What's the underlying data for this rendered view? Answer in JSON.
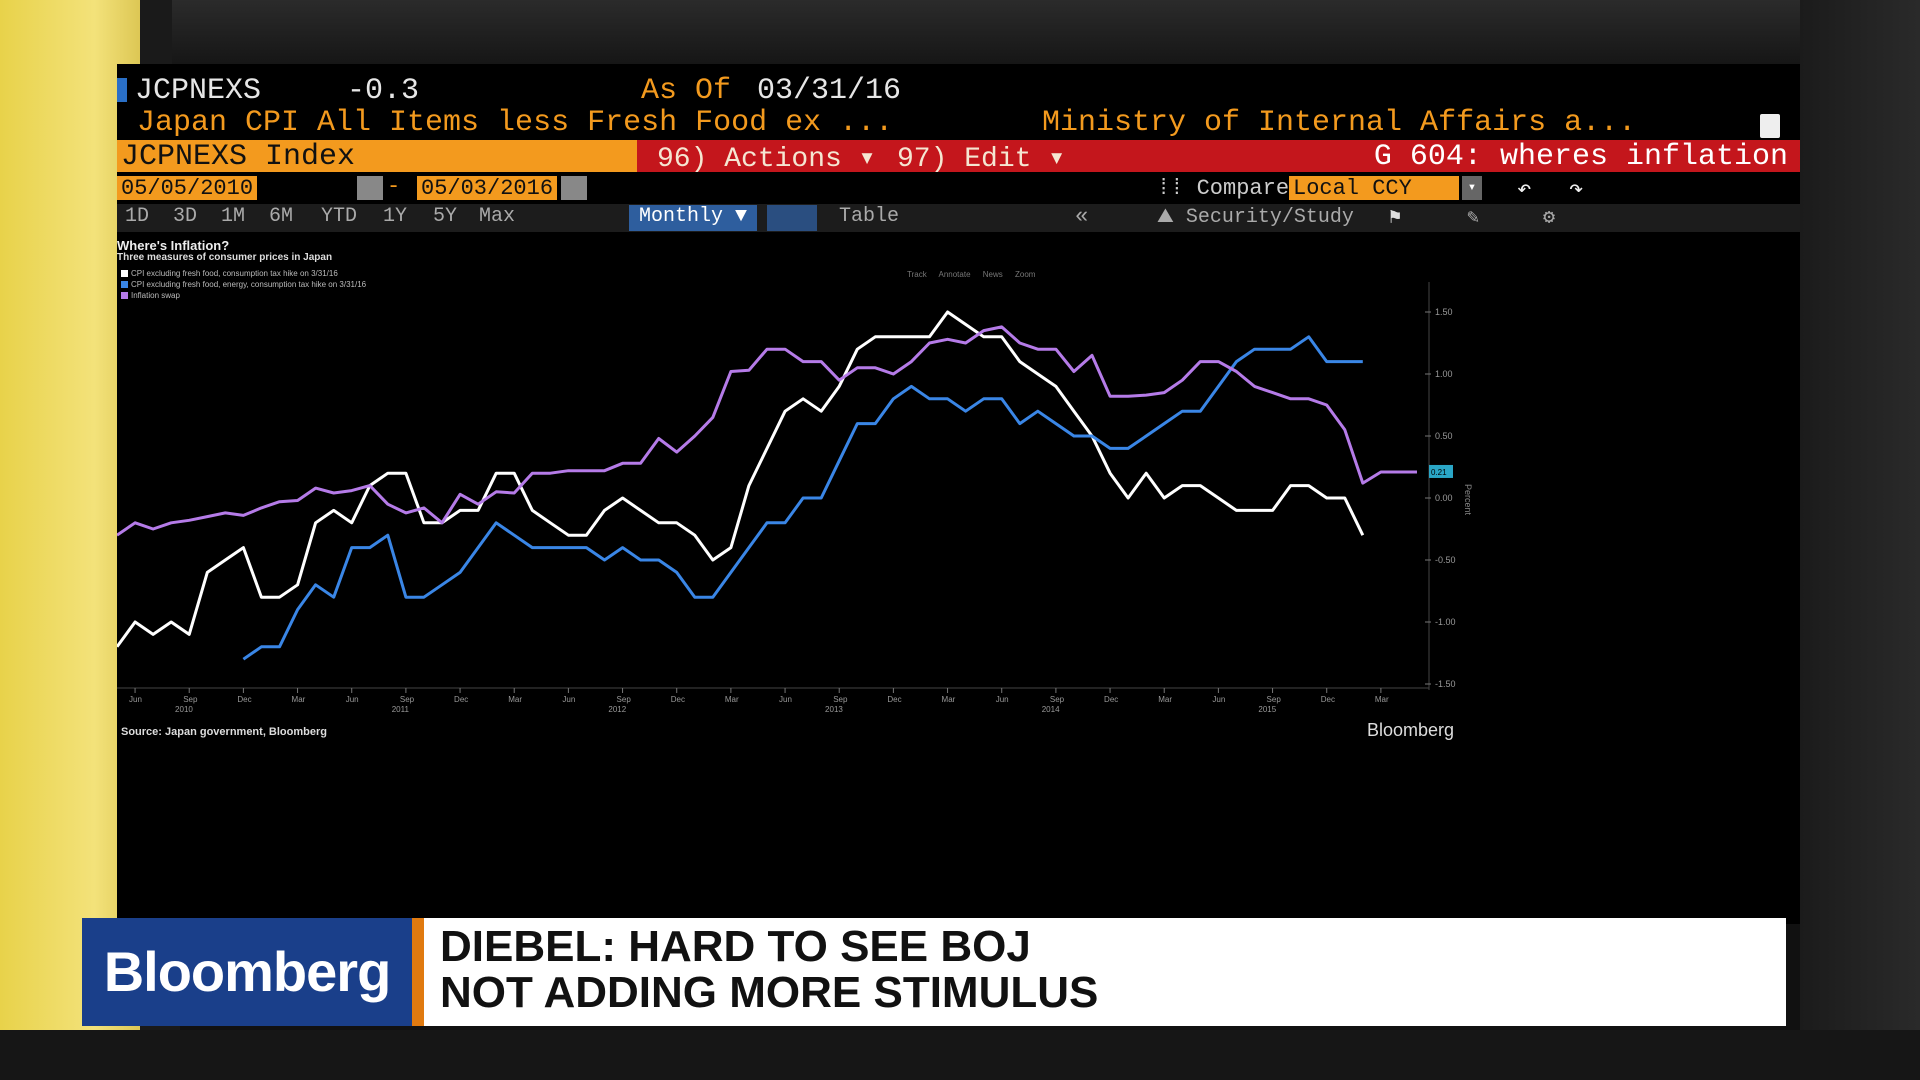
{
  "header": {
    "ticker": "JCPNEXS",
    "change": "-0.3",
    "as_of_label": "As Of",
    "as_of_date": "03/31/16",
    "description": "Japan CPI All Items less Fresh Food ex ...",
    "source": "Ministry of Internal Affairs a...",
    "index_label": "JCPNEXS Index",
    "actions_label": "96) Actions ▾",
    "edit_label": "97) Edit ▾",
    "graph_label": "G 604: wheres inflation"
  },
  "date_range": {
    "start": "05/05/2010",
    "separator": "-",
    "end": "05/03/2016",
    "compare_label": "Compare",
    "currency": "Local CCY"
  },
  "periods": [
    "1D",
    "3D",
    "1M",
    "6M",
    "YTD",
    "1Y",
    "5Y",
    "Max"
  ],
  "toolbar": {
    "frequency": "Monthly ▼",
    "table_label": "Table",
    "security_study_label": "Security/Study"
  },
  "chart_tools": [
    "Track",
    "Annotate",
    "News",
    "Zoom"
  ],
  "chart_data": {
    "type": "line",
    "title": "Where's Inflation?",
    "subtitle": "Three measures of consumer prices in Japan",
    "ylabel": "Percent",
    "ylim": [
      -1.5,
      1.5
    ],
    "y_ticks": [
      "1.50",
      "1.00",
      "0.50",
      "0.00",
      "-0.50",
      "-1.00",
      "-1.50"
    ],
    "x_ticks": [
      "Jun",
      "Sep",
      "Dec",
      "Mar",
      "Jun",
      "Sep",
      "Dec",
      "Mar",
      "Jun",
      "Sep",
      "Dec",
      "Mar",
      "Jun",
      "Sep",
      "Dec",
      "Mar",
      "Jun",
      "Sep",
      "Dec",
      "Mar",
      "Jun",
      "Sep",
      "Dec",
      "Mar"
    ],
    "x_years": [
      "2010",
      "2011",
      "2012",
      "2013",
      "2014",
      "2015"
    ],
    "x_start": "2010-05",
    "last_value_tag": "0.21",
    "series": [
      {
        "name": "CPI excluding fresh food, consumption tax hike on 3/31/16",
        "color": "#ffffff",
        "start": "2010-05",
        "values": [
          -1.2,
          -1.0,
          -1.1,
          -1.0,
          -1.1,
          -0.6,
          -0.5,
          -0.4,
          -0.8,
          -0.8,
          -0.7,
          -0.2,
          -0.1,
          -0.2,
          0.1,
          0.2,
          0.2,
          -0.2,
          -0.2,
          -0.1,
          -0.1,
          0.2,
          0.2,
          -0.1,
          -0.2,
          -0.3,
          -0.3,
          -0.1,
          0.0,
          -0.1,
          -0.2,
          -0.2,
          -0.3,
          -0.5,
          -0.4,
          0.1,
          0.4,
          0.7,
          0.8,
          0.7,
          0.9,
          1.2,
          1.3,
          1.3,
          1.3,
          1.3,
          1.5,
          1.4,
          1.3,
          1.3,
          1.1,
          1.0,
          0.9,
          0.7,
          0.5,
          0.2,
          0.0,
          0.2,
          0.0,
          0.1,
          0.1,
          0.0,
          -0.1,
          -0.1,
          -0.1,
          0.1,
          0.1,
          0.0,
          0.0,
          -0.3
        ]
      },
      {
        "name": "CPI excluding fresh food, energy, consumption tax hike on 3/31/16",
        "color": "#3a86e6",
        "start": "2010-12",
        "values": [
          -1.3,
          -1.2,
          -1.2,
          -0.9,
          -0.7,
          -0.8,
          -0.4,
          -0.4,
          -0.3,
          -0.8,
          -0.8,
          -0.7,
          -0.6,
          -0.4,
          -0.2,
          -0.3,
          -0.4,
          -0.4,
          -0.4,
          -0.4,
          -0.5,
          -0.4,
          -0.5,
          -0.5,
          -0.6,
          -0.8,
          -0.8,
          -0.6,
          -0.4,
          -0.2,
          -0.2,
          0.0,
          0.0,
          0.3,
          0.6,
          0.6,
          0.8,
          0.9,
          0.8,
          0.8,
          0.7,
          0.8,
          0.8,
          0.6,
          0.7,
          0.6,
          0.5,
          0.5,
          0.4,
          0.4,
          0.5,
          0.6,
          0.7,
          0.7,
          0.9,
          1.1,
          1.2,
          1.2,
          1.2,
          1.3,
          1.1,
          1.1,
          1.1
        ]
      },
      {
        "name": "Inflation swap",
        "color": "#b57be8",
        "start": "2010-05",
        "values": [
          -0.3,
          -0.2,
          -0.25,
          -0.2,
          -0.18,
          -0.15,
          -0.12,
          -0.14,
          -0.08,
          -0.03,
          -0.02,
          0.08,
          0.04,
          0.06,
          0.1,
          -0.05,
          -0.12,
          -0.08,
          -0.2,
          0.03,
          -0.05,
          0.05,
          0.04,
          0.2,
          0.2,
          0.22,
          0.22,
          0.22,
          0.28,
          0.28,
          0.48,
          0.37,
          0.5,
          0.65,
          1.02,
          1.03,
          1.2,
          1.2,
          1.1,
          1.1,
          0.95,
          1.05,
          1.05,
          1.0,
          1.1,
          1.25,
          1.28,
          1.25,
          1.35,
          1.38,
          1.25,
          1.2,
          1.2,
          1.02,
          1.15,
          0.82,
          0.82,
          0.83,
          0.85,
          0.95,
          1.1,
          1.1,
          1.02,
          0.9,
          0.85,
          0.8,
          0.8,
          0.75,
          0.55,
          0.12,
          0.21,
          0.21,
          0.21
        ]
      }
    ]
  },
  "chart_source": "Source: Japan government, Bloomberg",
  "chart_watermark": "Bloomberg",
  "lower_third": {
    "brand": "Bloomberg",
    "headline": "DIEBEL: HARD TO SEE BOJ\nNOT ADDING MORE STIMULUS"
  }
}
